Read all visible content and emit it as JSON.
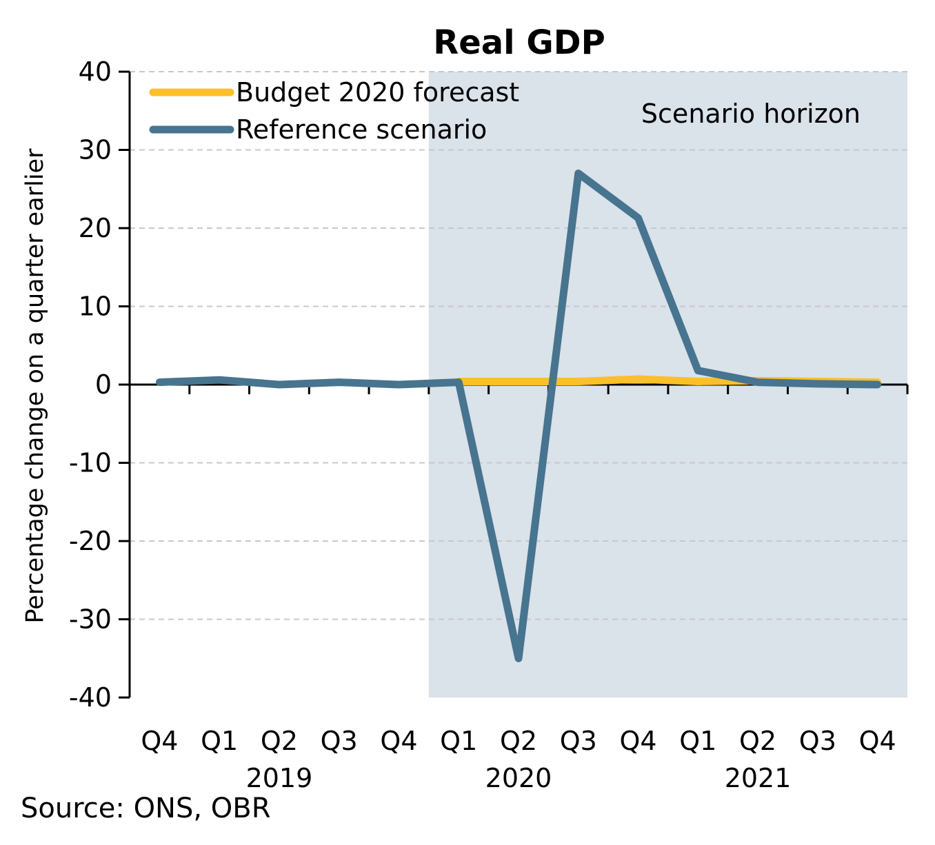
{
  "chart_data": {
    "type": "line",
    "title": "Real GDP",
    "ylabel": "Percentage change on a quarter earlier",
    "ylim": [
      -40,
      40
    ],
    "yticks": [
      40,
      30,
      20,
      10,
      0,
      -10,
      -20,
      -30,
      -40
    ],
    "categories": [
      "Q4",
      "Q1",
      "Q2",
      "Q3",
      "Q4",
      "Q1",
      "Q2",
      "Q3",
      "Q4",
      "Q1",
      "Q2",
      "Q3",
      "Q4"
    ],
    "year_labels": [
      {
        "label": "2019",
        "from": 1,
        "to": 4
      },
      {
        "label": "2020",
        "from": 5,
        "to": 8
      },
      {
        "label": "2021",
        "from": 9,
        "to": 12
      }
    ],
    "grid": true,
    "legend_position": "top-left",
    "shaded_region": {
      "label": "Scenario horizon",
      "from": 4.5,
      "to": 12.5,
      "color": "#dae2ea"
    },
    "series": [
      {
        "name": "Budget 2020 forecast",
        "color": "#fbbf2a",
        "values": [
          null,
          null,
          null,
          null,
          null,
          0.4,
          0.4,
          0.4,
          0.7,
          0.4,
          0.5,
          0.4,
          0.3
        ]
      },
      {
        "name": "Reference scenario",
        "color": "#47748f",
        "values": [
          0.3,
          0.6,
          0.0,
          0.3,
          0.0,
          0.3,
          -35.0,
          27.0,
          21.3,
          1.8,
          0.3,
          0.1,
          0.0
        ]
      }
    ]
  },
  "source": "Source: ONS, OBR"
}
